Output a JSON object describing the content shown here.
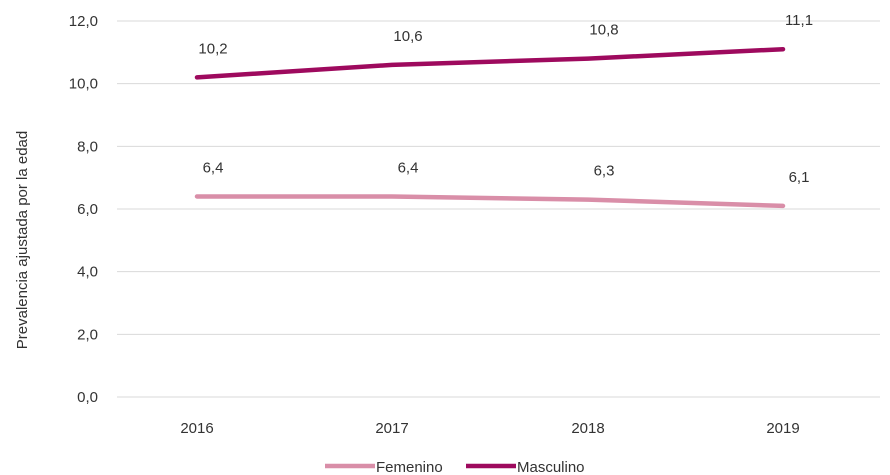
{
  "chart_data": {
    "type": "line",
    "categories": [
      "2016",
      "2017",
      "2018",
      "2019"
    ],
    "series": [
      {
        "name": "Femenino",
        "values": [
          6.4,
          6.4,
          6.3,
          6.1
        ],
        "labels": [
          "6,4",
          "6,4",
          "6,3",
          "6,1"
        ],
        "color": "#d98ea8"
      },
      {
        "name": "Masculino",
        "values": [
          10.2,
          10.6,
          10.8,
          11.1
        ],
        "labels": [
          "10,2",
          "10,6",
          "10,8",
          "11,1"
        ],
        "color": "#9e0a5e"
      }
    ],
    "ylabel": "Prevalencia ajustada por la edad",
    "ylim": [
      0,
      12
    ],
    "yticks": [
      "0,0",
      "2,0",
      "4,0",
      "6,0",
      "8,0",
      "10,0",
      "12,0"
    ],
    "grid": true,
    "legend": "bottom"
  }
}
